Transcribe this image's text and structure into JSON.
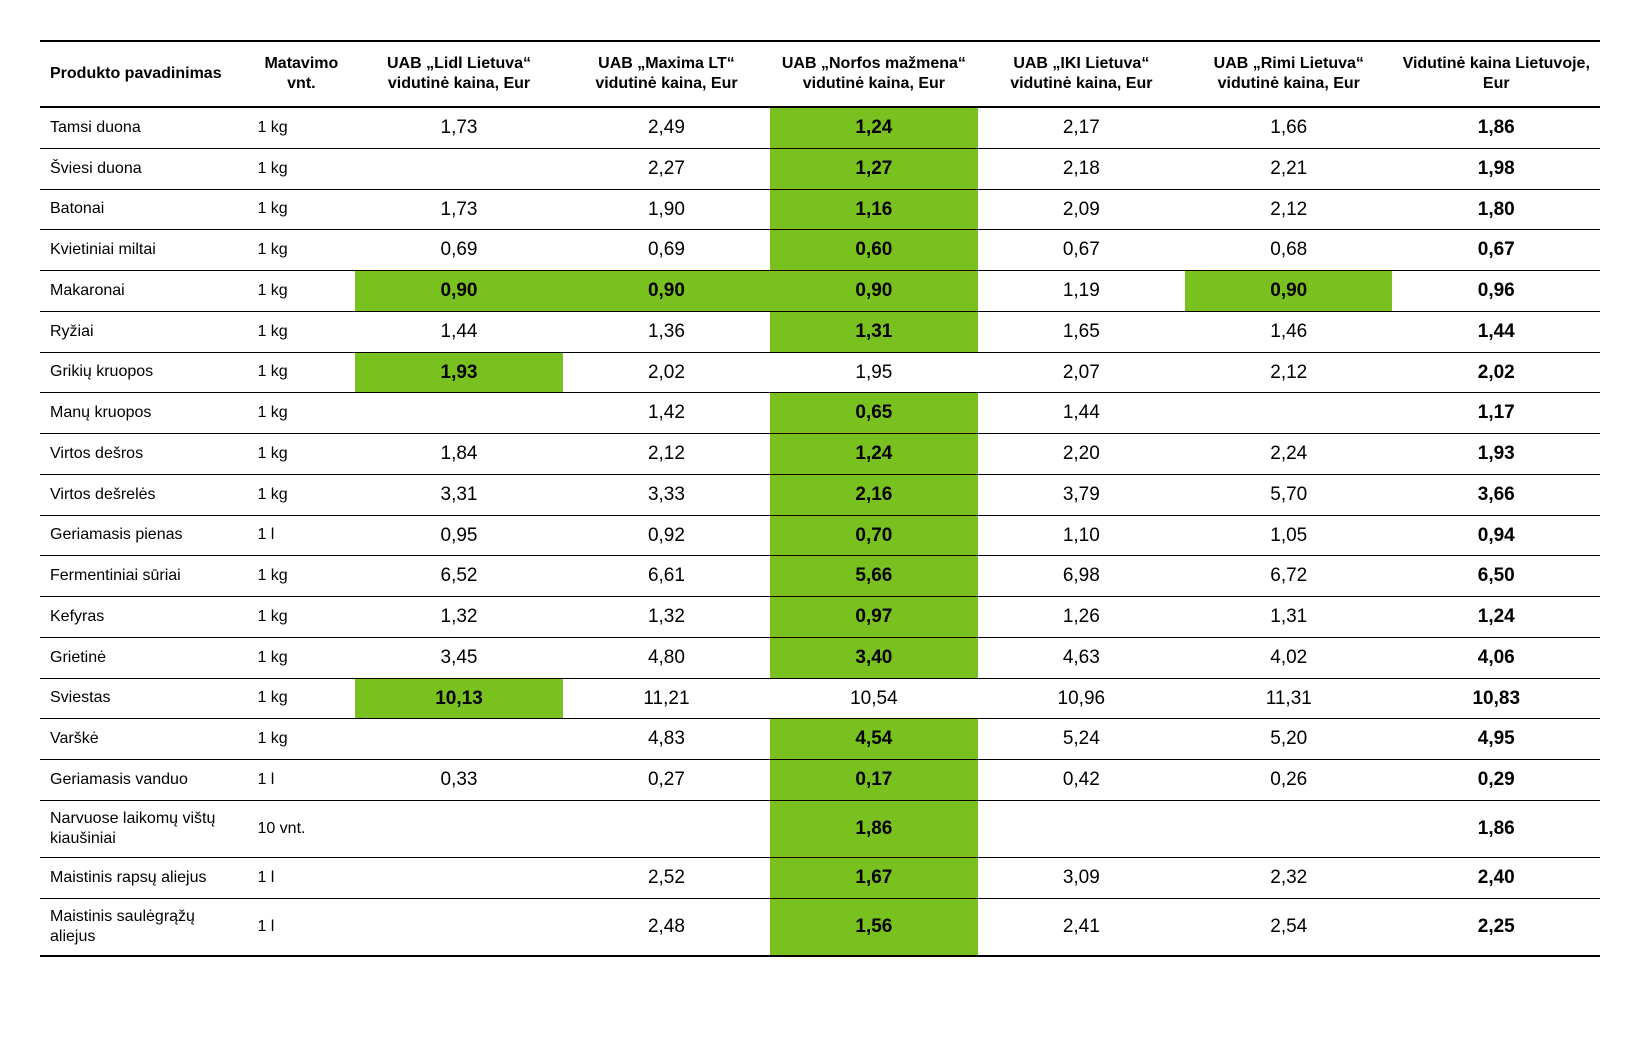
{
  "table": {
    "highlight_color": "#79c11e",
    "background_color": "#ffffff",
    "border_color": "#000000",
    "text_color": "#000000",
    "header_fontsize": 16,
    "body_fontsize": 17,
    "price_fontsize": 19,
    "columns": [
      {
        "key": "name",
        "label": "Produkto pavadinimas",
        "align": "left"
      },
      {
        "key": "unit",
        "label": "Matavimo vnt.",
        "align": "center"
      },
      {
        "key": "lidl",
        "label": "UAB „Lidl Lietuva“ vidutinė kaina, Eur",
        "align": "center"
      },
      {
        "key": "maxima",
        "label": "UAB „Maxima LT“ vidutinė kaina, Eur",
        "align": "center"
      },
      {
        "key": "norfa",
        "label": "UAB „Norfos mažmena“ vidutinė kaina, Eur",
        "align": "center"
      },
      {
        "key": "iki",
        "label": "UAB „IKI Lietuva“ vidutinė kaina, Eur",
        "align": "center"
      },
      {
        "key": "rimi",
        "label": "UAB „Rimi Lietuva“ vidutinė kaina, Eur",
        "align": "center"
      },
      {
        "key": "avg",
        "label": "Vidutinė kaina Lietuvoje, Eur",
        "align": "center"
      }
    ],
    "rows": [
      {
        "name": "Tamsi duona",
        "unit": "1 kg",
        "lidl": "1,73",
        "maxima": "2,49",
        "norfa": "1,24",
        "iki": "2,17",
        "rimi": "1,66",
        "avg": "1,86",
        "hl": [
          "norfa"
        ]
      },
      {
        "name": "Šviesi duona",
        "unit": "1 kg",
        "lidl": "",
        "maxima": "2,27",
        "norfa": "1,27",
        "iki": "2,18",
        "rimi": "2,21",
        "avg": "1,98",
        "hl": [
          "norfa"
        ]
      },
      {
        "name": "Batonai",
        "unit": "1 kg",
        "lidl": "1,73",
        "maxima": "1,90",
        "norfa": "1,16",
        "iki": "2,09",
        "rimi": "2,12",
        "avg": "1,80",
        "hl": [
          "norfa"
        ]
      },
      {
        "name": "Kvietiniai miltai",
        "unit": "1 kg",
        "lidl": "0,69",
        "maxima": "0,69",
        "norfa": "0,60",
        "iki": "0,67",
        "rimi": "0,68",
        "avg": "0,67",
        "hl": [
          "norfa"
        ]
      },
      {
        "name": "Makaronai",
        "unit": "1 kg",
        "lidl": "0,90",
        "maxima": "0,90",
        "norfa": "0,90",
        "iki": "1,19",
        "rimi": "0,90",
        "avg": "0,96",
        "hl": [
          "lidl",
          "maxima",
          "norfa",
          "rimi"
        ]
      },
      {
        "name": "Ryžiai",
        "unit": "1 kg",
        "lidl": "1,44",
        "maxima": "1,36",
        "norfa": "1,31",
        "iki": "1,65",
        "rimi": "1,46",
        "avg": "1,44",
        "hl": [
          "norfa"
        ]
      },
      {
        "name": "Grikių kruopos",
        "unit": "1 kg",
        "lidl": "1,93",
        "maxima": "2,02",
        "norfa": "1,95",
        "iki": "2,07",
        "rimi": "2,12",
        "avg": "2,02",
        "hl": [
          "lidl"
        ]
      },
      {
        "name": "Manų kruopos",
        "unit": "1 kg",
        "lidl": "",
        "maxima": "1,42",
        "norfa": "0,65",
        "iki": "1,44",
        "rimi": "",
        "avg": "1,17",
        "hl": [
          "norfa"
        ]
      },
      {
        "name": "Virtos dešros",
        "unit": "1 kg",
        "lidl": "1,84",
        "maxima": "2,12",
        "norfa": "1,24",
        "iki": "2,20",
        "rimi": "2,24",
        "avg": "1,93",
        "hl": [
          "norfa"
        ]
      },
      {
        "name": "Virtos dešrelės",
        "unit": "1 kg",
        "lidl": "3,31",
        "maxima": "3,33",
        "norfa": "2,16",
        "iki": "3,79",
        "rimi": "5,70",
        "avg": "3,66",
        "hl": [
          "norfa"
        ]
      },
      {
        "name": "Geriamasis pienas",
        "unit": "1 l",
        "lidl": "0,95",
        "maxima": "0,92",
        "norfa": "0,70",
        "iki": "1,10",
        "rimi": "1,05",
        "avg": "0,94",
        "hl": [
          "norfa"
        ]
      },
      {
        "name": "Fermentiniai sūriai",
        "unit": "1 kg",
        "lidl": "6,52",
        "maxima": "6,61",
        "norfa": "5,66",
        "iki": "6,98",
        "rimi": "6,72",
        "avg": "6,50",
        "hl": [
          "norfa"
        ]
      },
      {
        "name": "Kefyras",
        "unit": "1 kg",
        "lidl": "1,32",
        "maxima": "1,32",
        "norfa": "0,97",
        "iki": "1,26",
        "rimi": "1,31",
        "avg": "1,24",
        "hl": [
          "norfa"
        ]
      },
      {
        "name": "Grietinė",
        "unit": "1 kg",
        "lidl": "3,45",
        "maxima": "4,80",
        "norfa": "3,40",
        "iki": "4,63",
        "rimi": "4,02",
        "avg": "4,06",
        "hl": [
          "norfa"
        ]
      },
      {
        "name": "Sviestas",
        "unit": "1 kg",
        "lidl": "10,13",
        "maxima": "11,21",
        "norfa": "10,54",
        "iki": "10,96",
        "rimi": "11,31",
        "avg": "10,83",
        "hl": [
          "lidl"
        ]
      },
      {
        "name": "Varškė",
        "unit": "1 kg",
        "lidl": "",
        "maxima": "4,83",
        "norfa": "4,54",
        "iki": "5,24",
        "rimi": "5,20",
        "avg": "4,95",
        "hl": [
          "norfa"
        ]
      },
      {
        "name": "Geriamasis vanduo",
        "unit": "1 l",
        "lidl": "0,33",
        "maxima": "0,27",
        "norfa": "0,17",
        "iki": "0,42",
        "rimi": "0,26",
        "avg": "0,29",
        "hl": [
          "norfa"
        ]
      },
      {
        "name": "Narvuose laikomų vištų kiaušiniai",
        "unit": "10 vnt.",
        "lidl": "",
        "maxima": "",
        "norfa": "1,86",
        "iki": "",
        "rimi": "",
        "avg": "1,86",
        "hl": [
          "norfa"
        ]
      },
      {
        "name": "Maistinis rapsų aliejus",
        "unit": "1 l",
        "lidl": "",
        "maxima": "2,52",
        "norfa": "1,67",
        "iki": "3,09",
        "rimi": "2,32",
        "avg": "2,40",
        "hl": [
          "norfa"
        ]
      },
      {
        "name": "Maistinis saulėgrąžų aliejus",
        "unit": "1 l",
        "lidl": "",
        "maxima": "2,48",
        "norfa": "1,56",
        "iki": "2,41",
        "rimi": "2,54",
        "avg": "2,25",
        "hl": [
          "norfa"
        ]
      }
    ]
  }
}
